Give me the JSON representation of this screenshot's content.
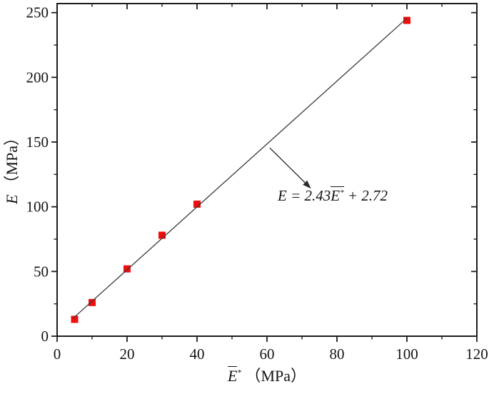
{
  "colors": {
    "background": "#ffffff",
    "frame": "#1d1d1d",
    "text": "#141414",
    "marker": "#f20d0d",
    "fit_line": "#3a3a3a",
    "arrow": "#2a2a2a"
  },
  "chart_data": {
    "type": "scatter",
    "title": "",
    "grid": false,
    "legend": false,
    "x_axis": {
      "label": "E̅* （MPa）",
      "label_parts": {
        "symbol": "E",
        "superscript": "*",
        "unit": "（MPa）"
      },
      "min": 0,
      "max": 120,
      "major_tick_step": 20,
      "minor_tick_step": 10,
      "tick_labels": [
        "0",
        "20",
        "40",
        "60",
        "80",
        "100",
        "120"
      ]
    },
    "y_axis": {
      "label": "E （MPa）",
      "label_parts": {
        "symbol": "E",
        "unit": "（MPa）"
      },
      "min": 0,
      "max": 257,
      "major_tick_step": 50,
      "minor_tick_step": 25,
      "tick_labels": [
        "0",
        "50",
        "100",
        "150",
        "200",
        "250"
      ]
    },
    "series": [
      {
        "name": "measured-points",
        "type": "scatter",
        "marker": "square",
        "marker_size": 10,
        "points": [
          {
            "x": 5,
            "y": 13
          },
          {
            "x": 10,
            "y": 26
          },
          {
            "x": 20,
            "y": 52
          },
          {
            "x": 30,
            "y": 78
          },
          {
            "x": 40,
            "y": 102
          },
          {
            "x": 100,
            "y": 244
          }
        ]
      },
      {
        "name": "linear-fit",
        "type": "line",
        "slope": 2.43,
        "intercept": 2.72,
        "x_start": 4.6,
        "x_end": 100
      }
    ],
    "annotation": {
      "equation_text": "E = 2.43E̅* + 2.72",
      "equation_parts": {
        "lhs": "E = 2.43",
        "barred_symbol": "E",
        "superscript": "*",
        "rhs": " + 2.72"
      },
      "arrow_from": {
        "x": 60.8,
        "y": 145.5
      },
      "arrow_to": {
        "x": 72.6,
        "y": 114.0
      }
    }
  }
}
